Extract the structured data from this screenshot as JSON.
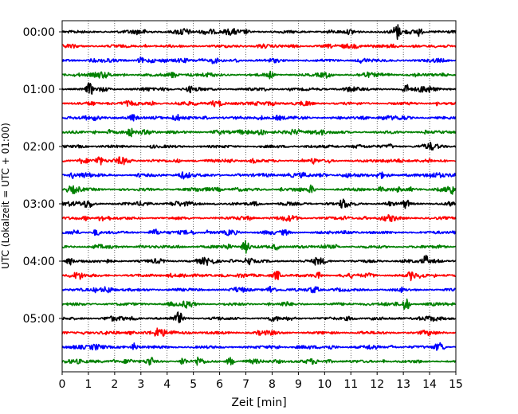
{
  "chart_data": {
    "type": "line",
    "xlabel": "Zeit  [min]",
    "ylabel": "UTC (Lokalzeit = UTC + 01:00)",
    "xlim": [
      0,
      15
    ],
    "x_ticks": [
      "0",
      "1",
      "2",
      "3",
      "4",
      "5",
      "6",
      "7",
      "8",
      "9",
      "10",
      "11",
      "12",
      "13",
      "14",
      "15"
    ],
    "y_ticks": [
      "00:00",
      "01:00",
      "02:00",
      "03:00",
      "04:00",
      "05:00"
    ],
    "y_tick_rows": [
      0,
      4,
      8,
      12,
      16,
      20
    ],
    "grid": "vertical dotted lines at each minute",
    "legend": "none",
    "row_count": 24,
    "minutes_per_row": 15,
    "color_cycle": [
      "#000000",
      "#ff0000",
      "#0000ff",
      "#008000"
    ],
    "events": [
      {
        "row": 0,
        "minute": 12.75,
        "amp": 1.0
      },
      {
        "row": 0,
        "minute": 13.6,
        "amp": 0.6
      },
      {
        "row": 2,
        "minute": 3.0,
        "amp": 0.4
      },
      {
        "row": 3,
        "minute": 7.9,
        "amp": 0.45
      },
      {
        "row": 4,
        "minute": 1.05,
        "amp": 0.85
      },
      {
        "row": 4,
        "minute": 13.1,
        "amp": 0.6
      },
      {
        "row": 6,
        "minute": 2.7,
        "amp": 0.35
      },
      {
        "row": 7,
        "minute": 7.6,
        "amp": 0.55
      },
      {
        "row": 7,
        "minute": 2.6,
        "amp": 0.5
      },
      {
        "row": 9,
        "minute": 1.4,
        "amp": 0.6
      },
      {
        "row": 10,
        "minute": 0.4,
        "amp": 0.45
      },
      {
        "row": 10,
        "minute": 12.1,
        "amp": 0.4
      },
      {
        "row": 11,
        "minute": 9.5,
        "amp": 0.5
      },
      {
        "row": 11,
        "minute": 14.8,
        "amp": 0.8
      },
      {
        "row": 12,
        "minute": 10.7,
        "amp": 0.6
      },
      {
        "row": 12,
        "minute": 13.1,
        "amp": 0.55
      },
      {
        "row": 13,
        "minute": 1.5,
        "amp": 0.5
      },
      {
        "row": 14,
        "minute": 1.3,
        "amp": 0.45
      },
      {
        "row": 15,
        "minute": 7.0,
        "amp": 0.7
      },
      {
        "row": 16,
        "minute": 0.3,
        "amp": 0.5
      },
      {
        "row": 16,
        "minute": 7.1,
        "amp": 0.6
      },
      {
        "row": 16,
        "minute": 13.85,
        "amp": 0.7
      },
      {
        "row": 17,
        "minute": 8.2,
        "amp": 0.55
      },
      {
        "row": 17,
        "minute": 13.3,
        "amp": 0.55
      },
      {
        "row": 18,
        "minute": 8.0,
        "amp": 0.5
      },
      {
        "row": 19,
        "minute": 13.1,
        "amp": 0.75
      },
      {
        "row": 20,
        "minute": 4.45,
        "amp": 0.8
      },
      {
        "row": 21,
        "minute": 3.65,
        "amp": 0.6
      },
      {
        "row": 22,
        "minute": 2.75,
        "amp": 0.5
      },
      {
        "row": 22,
        "minute": 14.4,
        "amp": 0.45
      },
      {
        "row": 23,
        "minute": 3.35,
        "amp": 0.6
      },
      {
        "row": 23,
        "minute": 4.6,
        "amp": 0.55
      },
      {
        "row": 23,
        "minute": 6.4,
        "amp": 0.6
      },
      {
        "row": 23,
        "minute": 5.2,
        "amp": 0.5
      }
    ]
  }
}
